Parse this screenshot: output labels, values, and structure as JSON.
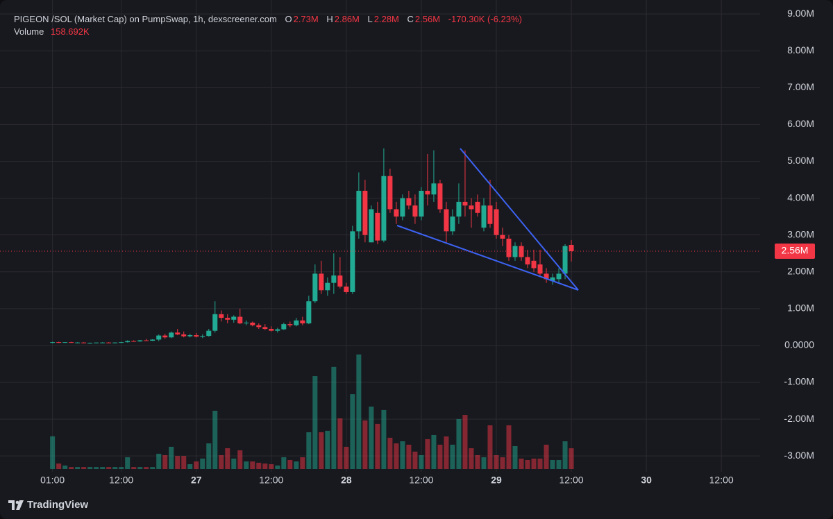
{
  "header": {
    "title": "PIGEON /SOL (Market Cap) on PumpSwap, 1h, dexscreener.com",
    "o_key": "O",
    "o_value": "2.73M",
    "h_key": "H",
    "h_value": "2.86M",
    "l_key": "L",
    "l_value": "2.28M",
    "c_key": "C",
    "c_value": "2.56M",
    "change": "-170.30K (-6.23%)",
    "volume_key": "Volume",
    "volume_value": "158.692K"
  },
  "chart_data": {
    "type": "candlestick",
    "up_color": "#22ab94",
    "down_color": "#f23645",
    "grid": true,
    "xlim": [
      -8.4,
      113.2
    ],
    "xticks": [
      {
        "value": 0,
        "label": "01:00"
      },
      {
        "value": 11,
        "label": "12:00"
      },
      {
        "value": 23,
        "label": "27"
      },
      {
        "value": 35,
        "label": "12:00"
      },
      {
        "value": 47,
        "label": "28"
      },
      {
        "value": 59,
        "label": "12:00"
      },
      {
        "value": 71,
        "label": "29"
      },
      {
        "value": 83,
        "label": "12:00"
      },
      {
        "value": 95,
        "label": "30"
      },
      {
        "value": 107,
        "label": "12:00"
      }
    ],
    "ylim": [
      -3430000,
      9380000
    ],
    "yticks": [
      {
        "value": 9000000,
        "label": "9.00M"
      },
      {
        "value": 8000000,
        "label": "8.00M"
      },
      {
        "value": 7000000,
        "label": "7.00M"
      },
      {
        "value": 6000000,
        "label": "6.00M"
      },
      {
        "value": 5000000,
        "label": "5.00M"
      },
      {
        "value": 4000000,
        "label": "4.00M"
      },
      {
        "value": 3000000,
        "label": "3.00M"
      },
      {
        "value": 2000000,
        "label": "2.00M"
      },
      {
        "value": 1000000,
        "label": "1.00M"
      },
      {
        "value": 0,
        "label": "0.0000"
      },
      {
        "value": -1000000,
        "label": "-1.00M"
      },
      {
        "value": -2000000,
        "label": "-2.00M"
      },
      {
        "value": -3000000,
        "label": "-3.00M"
      }
    ],
    "last_price": {
      "value": 2560000,
      "label": "2.56M"
    },
    "open": [
      80000,
      90000,
      80000,
      90000,
      80000,
      80000,
      70000,
      70000,
      80000,
      80000,
      70000,
      80000,
      90000,
      120000,
      110000,
      140000,
      130000,
      160000,
      270000,
      220000,
      350000,
      300000,
      250000,
      280000,
      240000,
      260000,
      400000,
      850000,
      750000,
      700000,
      780000,
      600000,
      620000,
      550000,
      500000,
      450000,
      400000,
      440000,
      580000,
      550000,
      680000,
      600000,
      1200000,
      1950000,
      1500000,
      1700000,
      1900000,
      1600000,
      1450000,
      3100000,
      4200000,
      2800000,
      3600000,
      2850000,
      4600000,
      3700000,
      3500000,
      4000000,
      3800000,
      3500000,
      4200000,
      4100000,
      4400000,
      3700000,
      3100000,
      3500000,
      3900000,
      3800000,
      3900000,
      3200000,
      3800000,
      3700000,
      3000000,
      2900000,
      2400000,
      2700000,
      2400000,
      2300000,
      2200000,
      1950000,
      1750000,
      1800000,
      1950000,
      2730000
    ],
    "high": [
      100000,
      100000,
      90000,
      100000,
      90000,
      90000,
      80000,
      80000,
      90000,
      90000,
      90000,
      100000,
      140000,
      140000,
      150000,
      180000,
      170000,
      300000,
      320000,
      380000,
      450000,
      380000,
      320000,
      340000,
      300000,
      450000,
      1200000,
      950000,
      850000,
      820000,
      1000000,
      680000,
      650000,
      600000,
      580000,
      520000,
      480000,
      620000,
      650000,
      750000,
      780000,
      1350000,
      2200000,
      2300000,
      1850000,
      2500000,
      2400000,
      1700000,
      3250000,
      4700000,
      4500000,
      3800000,
      3900000,
      5350000,
      4800000,
      3900000,
      4100000,
      4200000,
      4100000,
      4300000,
      5200000,
      5300000,
      4500000,
      3900000,
      3700000,
      4400000,
      5300000,
      4000000,
      4100000,
      4000000,
      4500000,
      3900000,
      3200000,
      3000000,
      2800000,
      2800000,
      2600000,
      2600000,
      2600000,
      2100000,
      1950000,
      2100000,
      2750000,
      2860000
    ],
    "low": [
      60000,
      70000,
      70000,
      80000,
      70000,
      70000,
      60000,
      60000,
      70000,
      70000,
      70000,
      70000,
      80000,
      100000,
      100000,
      120000,
      120000,
      120000,
      180000,
      200000,
      280000,
      220000,
      220000,
      220000,
      200000,
      240000,
      350000,
      650000,
      600000,
      620000,
      580000,
      550000,
      520000,
      450000,
      420000,
      380000,
      350000,
      420000,
      500000,
      520000,
      550000,
      580000,
      1150000,
      1400000,
      1350000,
      1400000,
      1550000,
      1400000,
      1400000,
      2900000,
      2800000,
      2800000,
      2750000,
      2800000,
      3600000,
      3300000,
      3400000,
      3700000,
      3300000,
      3400000,
      3800000,
      3900000,
      3600000,
      2800000,
      3000000,
      3300000,
      3500000,
      3200000,
      3500000,
      3100000,
      3200000,
      2900000,
      2700000,
      2300000,
      2300000,
      2300000,
      2100000,
      2000000,
      1900000,
      1700000,
      1650000,
      1700000,
      1800000,
      2280000
    ],
    "close": [
      90000,
      80000,
      90000,
      80000,
      80000,
      70000,
      70000,
      80000,
      80000,
      70000,
      80000,
      90000,
      120000,
      110000,
      140000,
      130000,
      160000,
      270000,
      220000,
      350000,
      300000,
      250000,
      280000,
      240000,
      260000,
      400000,
      850000,
      750000,
      700000,
      780000,
      600000,
      620000,
      550000,
      500000,
      450000,
      400000,
      440000,
      580000,
      550000,
      680000,
      600000,
      1200000,
      1950000,
      1500000,
      1700000,
      1900000,
      1600000,
      1450000,
      3100000,
      4200000,
      3000000,
      3700000,
      2850000,
      4600000,
      3700000,
      3500000,
      4000000,
      3800000,
      3500000,
      4200000,
      4100000,
      4400000,
      3700000,
      3100000,
      3500000,
      3900000,
      3800000,
      3700000,
      3600000,
      3800000,
      3300000,
      3000000,
      2900000,
      2400000,
      2700000,
      2400000,
      2200000,
      2100000,
      1950000,
      1800000,
      1850000,
      1950000,
      2700000,
      2560000
    ],
    "volume": [
      250000,
      42000,
      27000,
      15000,
      15000,
      15000,
      15000,
      15000,
      15000,
      15000,
      15000,
      15000,
      90000,
      15000,
      15000,
      15000,
      15000,
      117000,
      106000,
      170000,
      100000,
      100000,
      37000,
      58000,
      80000,
      196000,
      445000,
      106000,
      159000,
      80000,
      143000,
      58000,
      58000,
      48000,
      42000,
      37000,
      27000,
      90000,
      69000,
      58000,
      90000,
      281000,
      710000,
      281000,
      292000,
      780000,
      387000,
      170000,
      572000,
      875000,
      371000,
      477000,
      345000,
      451000,
      239000,
      196000,
      212000,
      186000,
      133000,
      106000,
      228000,
      260000,
      186000,
      249000,
      186000,
      382000,
      413000,
      159000,
      106000,
      90000,
      334000,
      106000,
      90000,
      334000,
      175000,
      80000,
      69000,
      80000,
      80000,
      186000,
      69000,
      69000,
      212000,
      158692
    ]
  },
  "footer": {
    "brand": "TradingView"
  }
}
